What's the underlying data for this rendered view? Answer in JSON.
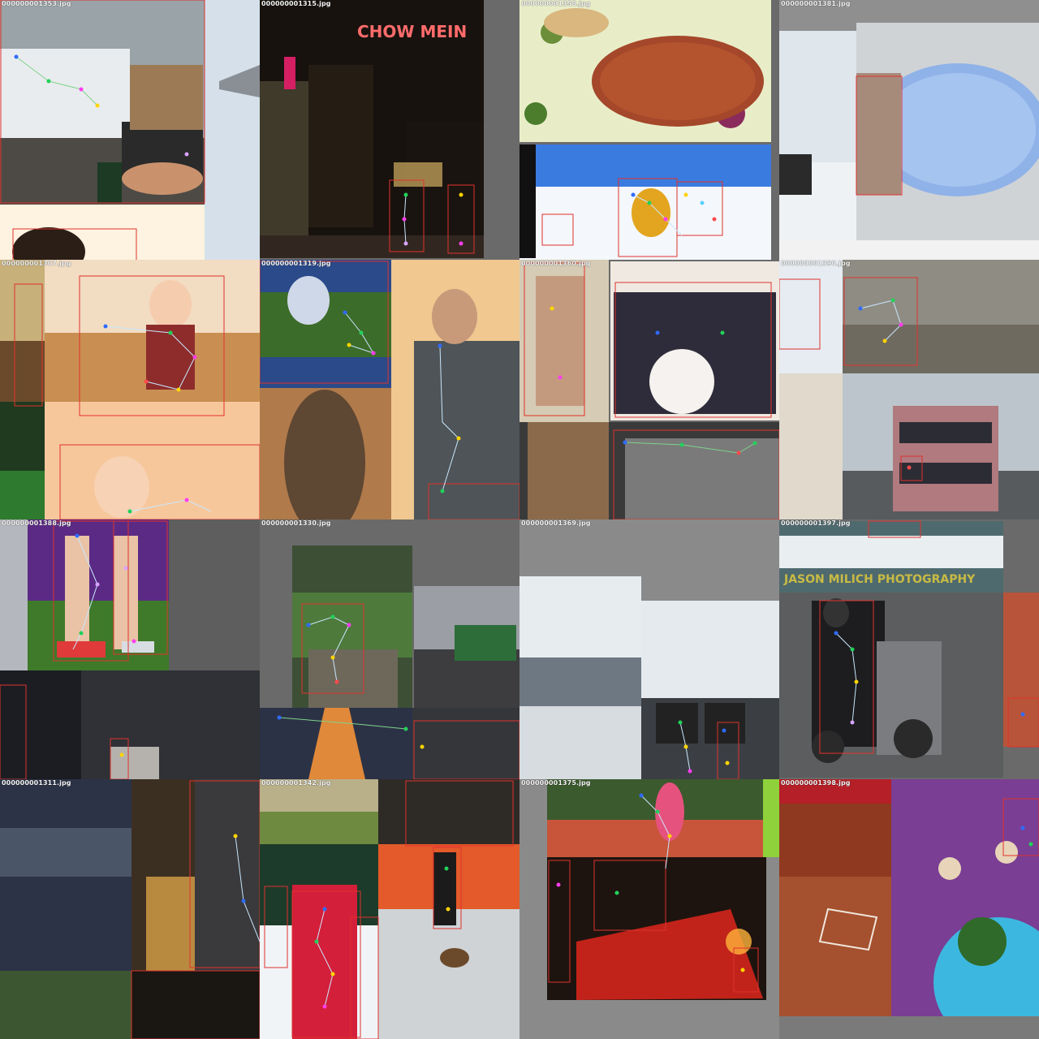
{
  "mosaic": {
    "tiles": [
      {
        "label": "000000001353.jpg"
      },
      {
        "label": "000000001315.jpg",
        "sign_text": "CHOW MEIN"
      },
      {
        "label": "000000001358.jpg"
      },
      {
        "label": "000000001381.jpg"
      },
      {
        "label": "000000001307.jpg"
      },
      {
        "label": "000000001319.jpg"
      },
      {
        "label": "000000001360.jpg"
      },
      {
        "label": "000000001390.jpg"
      },
      {
        "label": "000000001388.jpg"
      },
      {
        "label": "000000001330.jpg"
      },
      {
        "label": "000000001369.jpg"
      },
      {
        "label": "000000001397.jpg",
        "watermark_text": "JASON MILICH PHOTOGRAPHY"
      },
      {
        "label": "000000001311.jpg"
      },
      {
        "label": "000000001342.jpg"
      },
      {
        "label": "000000001375.jpg"
      },
      {
        "label": "000000001398.jpg"
      }
    ]
  },
  "colors": {
    "bbox": "#e0322d",
    "keypoint_palette": [
      "#2f6bff",
      "#22d15a",
      "#ff3df0",
      "#ffd400",
      "#ff4a4a",
      "#d9a3ff",
      "#5ad0ff"
    ],
    "skeleton": "#c8e8ff",
    "padding_gray": "#7a7a7a"
  }
}
